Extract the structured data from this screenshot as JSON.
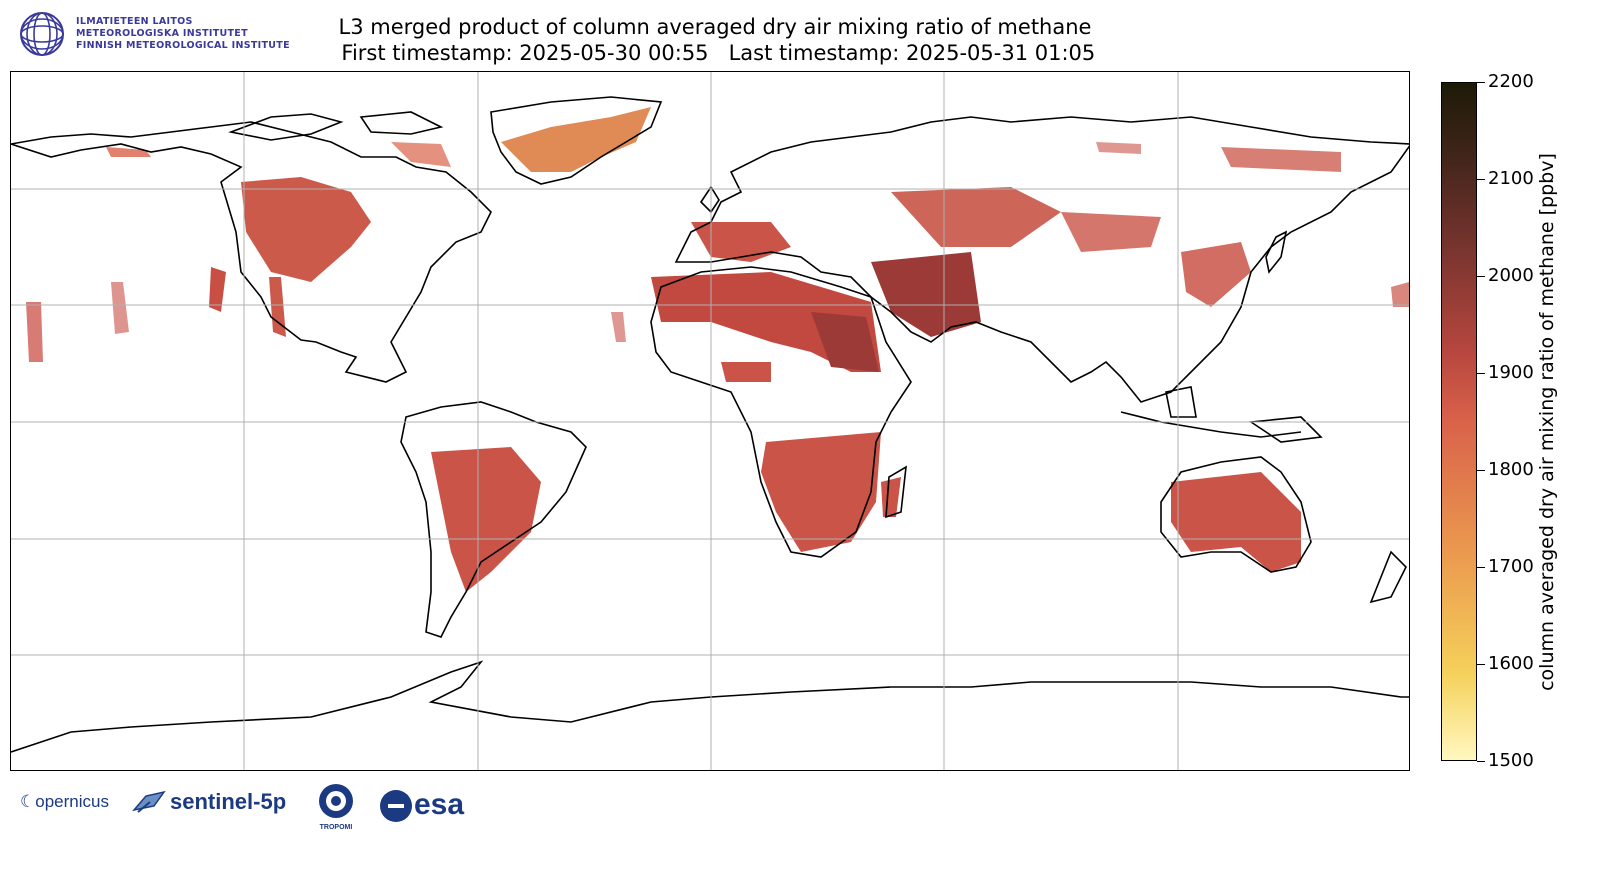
{
  "institute": {
    "lines": [
      "ILMATIETEEN LAITOS",
      "METEOROLOGISKA INSTITUTET",
      "FINNISH METEOROLOGICAL INSTITUTE"
    ],
    "logo_icon": "fmi-globe-icon"
  },
  "title": {
    "line1": "L3 merged product of column averaged dry air mixing ratio of methane",
    "line2": " First timestamp: 2025-05-30 00:55   Last timestamp: 2025-05-31 01:05"
  },
  "colorbar": {
    "label": "column averaged dry air mixing ratio of methane [ppbv]",
    "min": 1500,
    "max": 2200,
    "ticks": [
      "1500",
      "1600",
      "1700",
      "1800",
      "1900",
      "2000",
      "2100",
      "2200"
    ],
    "colors": [
      "#fff8c0",
      "#f5d05a",
      "#eb9b4f",
      "#d9624a",
      "#b8473f",
      "#7a352f",
      "#3e2419",
      "#1d1a08"
    ]
  },
  "map": {
    "projection": "plate-carree",
    "gridlines": true,
    "coastline_color": "#000000",
    "data_color_typical": "#c95447",
    "data_color_high": "#9b3a36",
    "data_color_low": "#e08a55",
    "coverage_regions": [
      "Greenland",
      "North America",
      "South America",
      "Africa",
      "Middle East",
      "Europe",
      "Central Asia",
      "East Asia",
      "Australia"
    ]
  },
  "logos": {
    "copernicus": "opernicus",
    "sentinel": "sentinel-5p",
    "tropomi": "TROPOMI",
    "esa": "esa"
  }
}
